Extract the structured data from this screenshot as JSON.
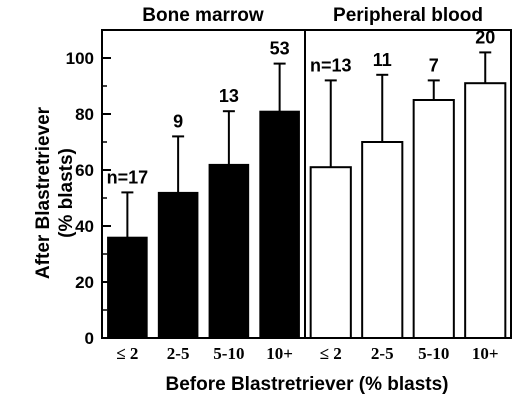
{
  "chart_data": {
    "type": "bar",
    "ylabel_line1": "After Blastretriever",
    "ylabel_line2": "(% blasts)",
    "xlabel": "Before Blastretriever (% blasts)",
    "ylim": [
      0,
      110
    ],
    "yticks": [
      0,
      20,
      40,
      60,
      80,
      100
    ],
    "panels": [
      {
        "title": "Bone marrow",
        "fill": "#000000",
        "categories": [
          "≤ 2",
          "2-5",
          "5-10",
          "10+"
        ],
        "values": [
          36,
          52,
          62,
          81
        ],
        "error_upper": [
          52,
          72,
          81,
          98
        ],
        "n_labels": [
          "n=17",
          "9",
          "13",
          "53"
        ]
      },
      {
        "title": "Peripheral blood",
        "fill": "#ffffff",
        "categories": [
          "≤ 2",
          "2-5",
          "5-10",
          "10+"
        ],
        "values": [
          61,
          70,
          85,
          91
        ],
        "error_upper": [
          92,
          94,
          92,
          102
        ],
        "n_labels": [
          "n=13",
          "11",
          "7",
          "20"
        ]
      }
    ]
  }
}
